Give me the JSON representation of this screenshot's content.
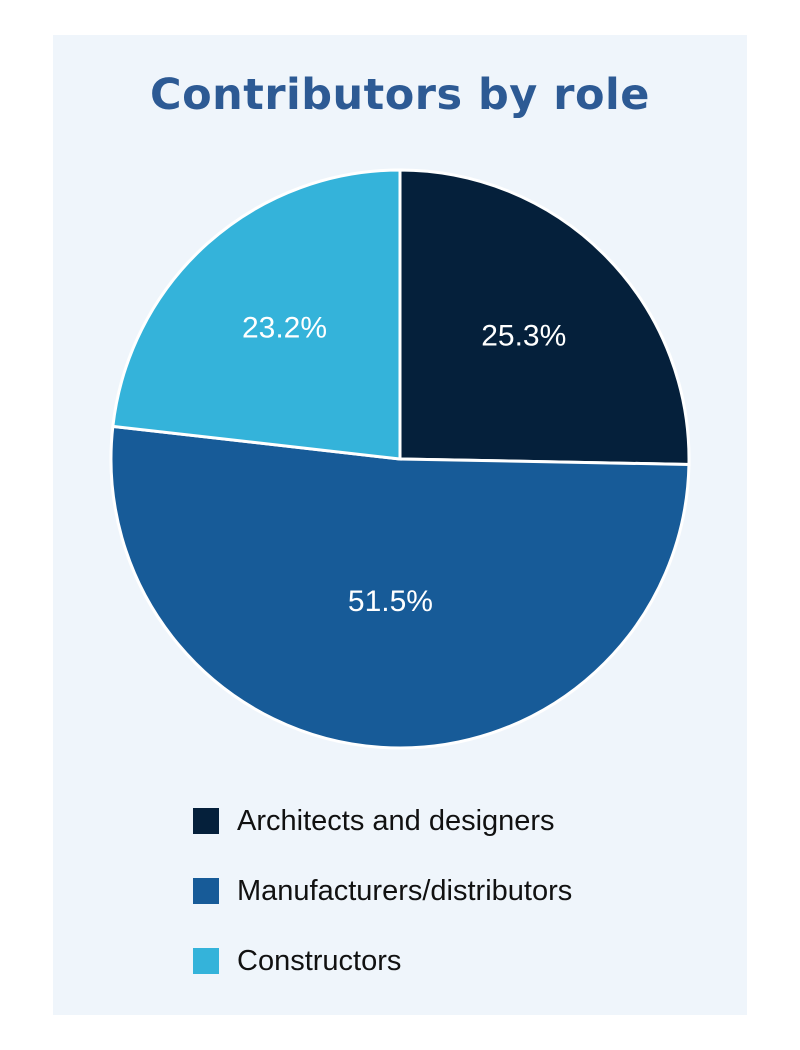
{
  "chart_data": {
    "type": "pie",
    "title": "Contributors by role",
    "categories": [
      "Architects and designers",
      "Manufacturers/distributors",
      "Constructors"
    ],
    "values": [
      25.3,
      51.5,
      23.2
    ],
    "value_labels": [
      "25.3%",
      "51.5%",
      "23.2%"
    ],
    "colors": [
      "#05203b",
      "#175b98",
      "#34b3da"
    ],
    "legend": "bottom"
  }
}
